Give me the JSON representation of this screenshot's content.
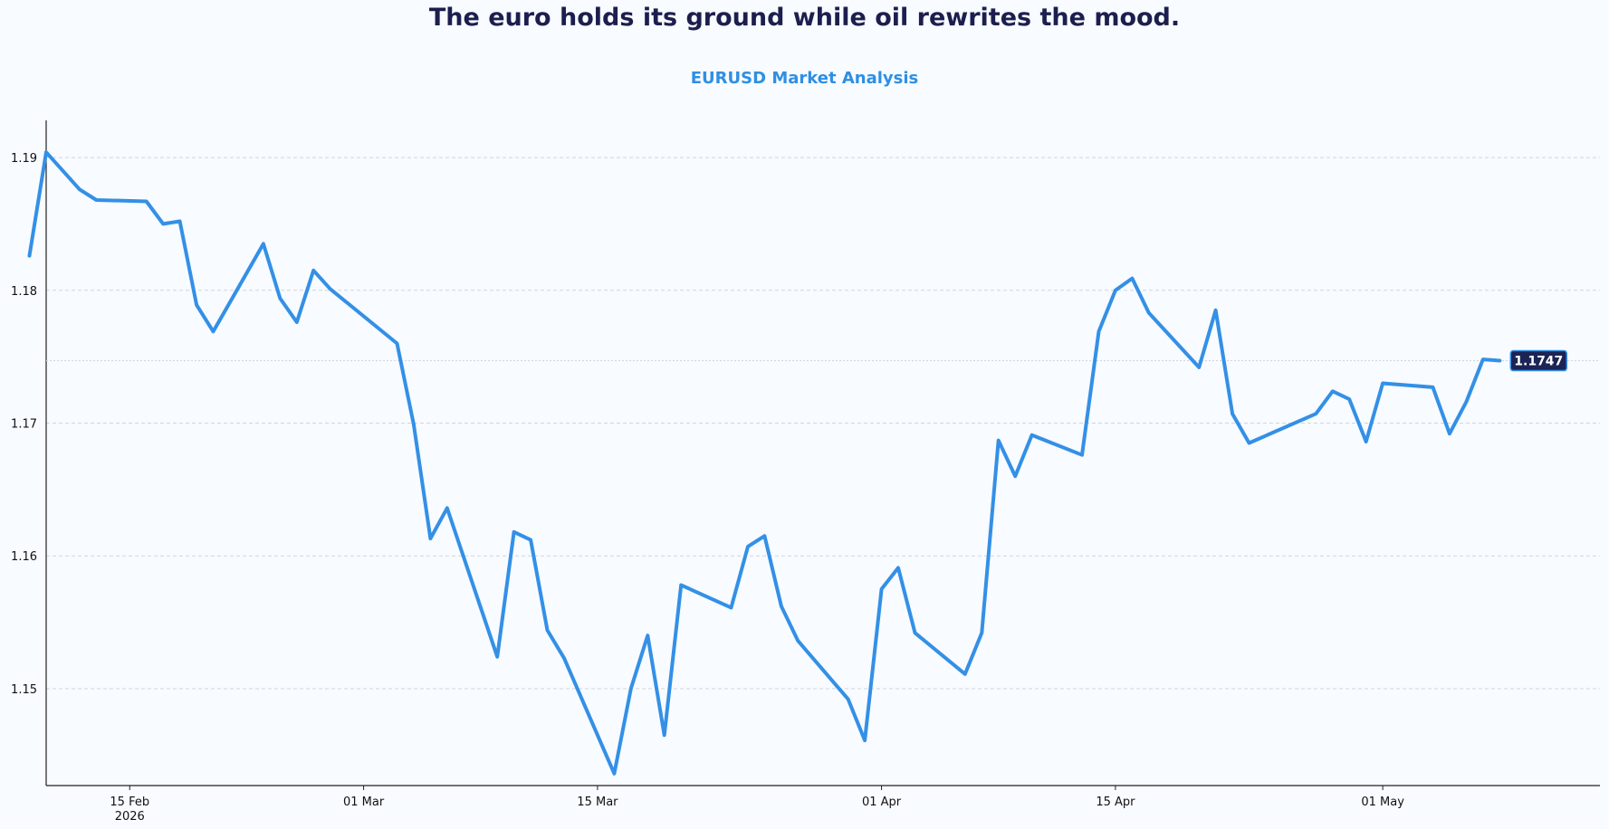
{
  "colors": {
    "background": "#f8fbff",
    "title": "#1c1f4d",
    "subtitle": "#2f8fe3",
    "line": "#3390e6",
    "grid": "#cfd6df",
    "badge_bg": "#1c2355",
    "badge_text": "#ffffff"
  },
  "chart_data": {
    "type": "line",
    "title": "The euro holds its ground while oil rewrites the mood.",
    "subtitle": "EURUSD Market Analysis",
    "xlabel": "",
    "ylabel": "",
    "grid": "horizontal dashed",
    "legend": "none",
    "x_range": [
      "2026-02-10",
      "2026-05-14"
    ],
    "ylim": [
      1.1427,
      1.1928
    ],
    "y_ticks": [
      1.15,
      1.16,
      1.17,
      1.18,
      1.19
    ],
    "y_tick_labels": [
      "1.15",
      "1.16",
      "1.17",
      "1.18",
      "1.19"
    ],
    "x_ticks": [
      {
        "date": "2026-02-15",
        "label": "15 Feb",
        "sublabel": "2026"
      },
      {
        "date": "2026-03-01",
        "label": "01 Mar",
        "sublabel": ""
      },
      {
        "date": "2026-03-15",
        "label": "15 Mar",
        "sublabel": ""
      },
      {
        "date": "2026-04-01",
        "label": "01 Apr",
        "sublabel": ""
      },
      {
        "date": "2026-04-15",
        "label": "15 Apr",
        "sublabel": ""
      },
      {
        "date": "2026-05-01",
        "label": "01 May",
        "sublabel": ""
      }
    ],
    "last_value_label": "1.1747",
    "series": [
      {
        "dates": [
          "2026-02-09",
          "2026-02-10",
          "2026-02-12",
          "2026-02-13",
          "2026-02-16",
          "2026-02-17",
          "2026-02-18",
          "2026-02-19",
          "2026-02-20",
          "2026-02-23",
          "2026-02-24",
          "2026-02-25",
          "2026-02-26",
          "2026-02-27",
          "2026-03-03",
          "2026-03-04",
          "2026-03-05",
          "2026-03-06",
          "2026-03-09",
          "2026-03-10",
          "2026-03-11",
          "2026-03-12",
          "2026-03-13",
          "2026-03-16",
          "2026-03-17",
          "2026-03-18",
          "2026-03-19",
          "2026-03-20",
          "2026-03-23",
          "2026-03-24",
          "2026-03-25",
          "2026-03-26",
          "2026-03-27",
          "2026-03-30",
          "2026-03-31",
          "2026-04-01",
          "2026-04-02",
          "2026-04-03",
          "2026-04-06",
          "2026-04-07",
          "2026-04-08",
          "2026-04-09",
          "2026-04-10",
          "2026-04-13",
          "2026-04-14",
          "2026-04-15",
          "2026-04-16",
          "2026-04-17",
          "2026-04-20",
          "2026-04-21",
          "2026-04-22",
          "2026-04-23",
          "2026-04-27",
          "2026-04-28",
          "2026-04-29",
          "2026-04-30",
          "2026-05-01",
          "2026-05-04",
          "2026-05-05",
          "2026-05-06",
          "2026-05-07",
          "2026-05-08"
        ],
        "values": [
          1.1826,
          1.1904,
          1.1876,
          1.1868,
          1.1867,
          1.185,
          1.1852,
          1.1789,
          1.1769,
          1.1835,
          1.1794,
          1.1776,
          1.1815,
          1.1801,
          1.176,
          1.1699,
          1.1613,
          1.1636,
          1.1524,
          1.1618,
          1.1612,
          1.1544,
          1.1523,
          1.1436,
          1.15,
          1.154,
          1.1465,
          1.1578,
          1.1561,
          1.1607,
          1.1615,
          1.1562,
          1.1536,
          1.1492,
          1.1461,
          1.1575,
          1.1591,
          1.1542,
          1.1511,
          1.1542,
          1.1687,
          1.166,
          1.1691,
          1.1676,
          1.1769,
          1.18,
          1.1809,
          1.1783,
          1.1742,
          1.1785,
          1.1707,
          1.1685,
          1.1707,
          1.1724,
          1.1718,
          1.1686,
          1.173,
          1.1727,
          1.1692,
          1.1716,
          1.1748,
          1.1747
        ]
      }
    ]
  }
}
